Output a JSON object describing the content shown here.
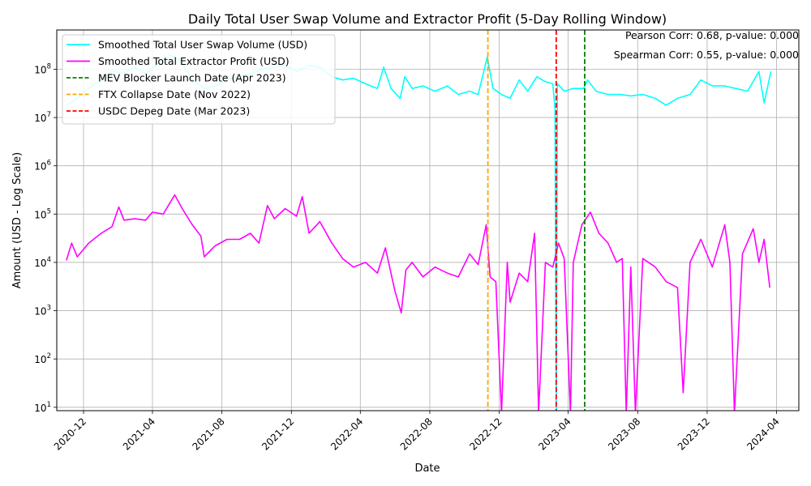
{
  "chart_data": {
    "type": "line",
    "title": "Daily Total User Swap Volume and Extractor Profit (5-Day Rolling Window)",
    "xlabel": "Date",
    "ylabel": "Amount (USD - Log Scale)",
    "yscale": "log",
    "xlim": [
      "2020-10-15",
      "2024-05-10"
    ],
    "ylim": [
      8.5,
      650000000
    ],
    "grid": true,
    "legend_position": "top-left",
    "x_ticks": [
      "2020-12",
      "2021-04",
      "2021-08",
      "2021-12",
      "2022-04",
      "2022-08",
      "2022-12",
      "2023-04",
      "2023-08",
      "2023-12",
      "2024-04"
    ],
    "x_tick_dates": [
      "2020-12-01",
      "2021-04-01",
      "2021-08-01",
      "2021-12-01",
      "2022-04-01",
      "2022-08-01",
      "2022-12-01",
      "2023-04-01",
      "2023-08-01",
      "2023-12-01",
      "2024-04-01"
    ],
    "y_ticks": [
      {
        "value": 10,
        "base": "10",
        "exp": "1"
      },
      {
        "value": 100,
        "base": "10",
        "exp": "2"
      },
      {
        "value": 1000,
        "base": "10",
        "exp": "3"
      },
      {
        "value": 10000,
        "base": "10",
        "exp": "4"
      },
      {
        "value": 100000,
        "base": "10",
        "exp": "5"
      },
      {
        "value": 1000000,
        "base": "10",
        "exp": "6"
      },
      {
        "value": 10000000,
        "base": "10",
        "exp": "7"
      },
      {
        "value": 100000000,
        "base": "10",
        "exp": "8"
      }
    ],
    "series": [
      {
        "name": "Smoothed Total User Swap Volume (USD)",
        "color": "#00ffff",
        "points": [
          [
            "2020-11-01",
            18000000
          ],
          [
            "2020-11-20",
            25000000
          ],
          [
            "2020-12-10",
            40000000
          ],
          [
            "2021-01-01",
            60000000
          ],
          [
            "2021-01-20",
            90000000
          ],
          [
            "2021-02-10",
            85000000
          ],
          [
            "2021-03-01",
            110000000
          ],
          [
            "2021-03-20",
            80000000
          ],
          [
            "2021-04-10",
            130000000
          ],
          [
            "2021-05-01",
            200000000
          ],
          [
            "2021-05-20",
            150000000
          ],
          [
            "2021-06-10",
            60000000
          ],
          [
            "2021-07-01",
            40000000
          ],
          [
            "2021-07-20",
            45000000
          ],
          [
            "2021-08-10",
            60000000
          ],
          [
            "2021-09-01",
            70000000
          ],
          [
            "2021-09-20",
            80000000
          ],
          [
            "2021-10-10",
            100000000
          ],
          [
            "2021-11-01",
            110000000
          ],
          [
            "2021-11-20",
            120000000
          ],
          [
            "2021-12-10",
            90000000
          ],
          [
            "2022-01-01",
            120000000
          ],
          [
            "2022-01-20",
            110000000
          ],
          [
            "2022-02-10",
            70000000
          ],
          [
            "2022-03-01",
            60000000
          ],
          [
            "2022-03-20",
            65000000
          ],
          [
            "2022-04-10",
            50000000
          ],
          [
            "2022-05-01",
            40000000
          ],
          [
            "2022-05-12",
            110000000
          ],
          [
            "2022-05-25",
            40000000
          ],
          [
            "2022-06-10",
            25000000
          ],
          [
            "2022-06-18",
            70000000
          ],
          [
            "2022-07-01",
            40000000
          ],
          [
            "2022-07-20",
            45000000
          ],
          [
            "2022-08-10",
            35000000
          ],
          [
            "2022-09-01",
            45000000
          ],
          [
            "2022-09-20",
            30000000
          ],
          [
            "2022-10-10",
            35000000
          ],
          [
            "2022-10-25",
            30000000
          ],
          [
            "2022-11-10",
            180000000
          ],
          [
            "2022-11-20",
            40000000
          ],
          [
            "2022-12-05",
            30000000
          ],
          [
            "2022-12-20",
            25000000
          ],
          [
            "2023-01-05",
            60000000
          ],
          [
            "2023-01-20",
            35000000
          ],
          [
            "2023-02-05",
            70000000
          ],
          [
            "2023-02-20",
            55000000
          ],
          [
            "2023-03-05",
            50000000
          ],
          [
            "2023-03-09",
            15000000
          ],
          [
            "2023-03-11",
            9
          ],
          [
            "2023-03-13",
            50000000
          ],
          [
            "2023-03-25",
            35000000
          ],
          [
            "2023-04-10",
            40000000
          ],
          [
            "2023-04-28",
            40000000
          ],
          [
            "2023-05-05",
            60000000
          ],
          [
            "2023-05-20",
            35000000
          ],
          [
            "2023-06-10",
            30000000
          ],
          [
            "2023-07-01",
            30000000
          ],
          [
            "2023-07-20",
            28000000
          ],
          [
            "2023-08-10",
            30000000
          ],
          [
            "2023-09-01",
            25000000
          ],
          [
            "2023-09-20",
            18000000
          ],
          [
            "2023-10-10",
            25000000
          ],
          [
            "2023-11-01",
            30000000
          ],
          [
            "2023-11-20",
            60000000
          ],
          [
            "2023-12-10",
            45000000
          ],
          [
            "2024-01-01",
            45000000
          ],
          [
            "2024-01-20",
            40000000
          ],
          [
            "2024-02-10",
            35000000
          ],
          [
            "2024-03-01",
            90000000
          ],
          [
            "2024-03-10",
            20000000
          ],
          [
            "2024-03-22",
            90000000
          ]
        ]
      },
      {
        "name": "Smoothed Total Extractor Profit (USD)",
        "color": "#ff00ff",
        "points": [
          [
            "2020-11-01",
            11000
          ],
          [
            "2020-11-10",
            25000
          ],
          [
            "2020-11-20",
            13000
          ],
          [
            "2020-12-10",
            25000
          ],
          [
            "2021-01-01",
            40000
          ],
          [
            "2021-01-20",
            55000
          ],
          [
            "2021-02-01",
            140000
          ],
          [
            "2021-02-10",
            75000
          ],
          [
            "2021-03-01",
            80000
          ],
          [
            "2021-03-20",
            75000
          ],
          [
            "2021-04-01",
            110000
          ],
          [
            "2021-04-20",
            100000
          ],
          [
            "2021-05-10",
            250000
          ],
          [
            "2021-05-25",
            120000
          ],
          [
            "2021-06-10",
            60000
          ],
          [
            "2021-06-25",
            35000
          ],
          [
            "2021-07-01",
            13000
          ],
          [
            "2021-07-20",
            22000
          ],
          [
            "2021-08-10",
            30000
          ],
          [
            "2021-09-01",
            30000
          ],
          [
            "2021-09-20",
            40000
          ],
          [
            "2021-10-05",
            25000
          ],
          [
            "2021-10-20",
            150000
          ],
          [
            "2021-11-01",
            80000
          ],
          [
            "2021-11-20",
            130000
          ],
          [
            "2021-12-10",
            90000
          ],
          [
            "2021-12-20",
            230000
          ],
          [
            "2022-01-01",
            40000
          ],
          [
            "2022-01-20",
            70000
          ],
          [
            "2022-02-10",
            25000
          ],
          [
            "2022-03-01",
            12000
          ],
          [
            "2022-03-20",
            8000
          ],
          [
            "2022-04-10",
            10000
          ],
          [
            "2022-05-01",
            6000
          ],
          [
            "2022-05-15",
            20000
          ],
          [
            "2022-06-01",
            2500
          ],
          [
            "2022-06-12",
            900
          ],
          [
            "2022-06-20",
            7000
          ],
          [
            "2022-07-01",
            10000
          ],
          [
            "2022-07-20",
            5000
          ],
          [
            "2022-08-10",
            8000
          ],
          [
            "2022-09-01",
            6000
          ],
          [
            "2022-09-20",
            5000
          ],
          [
            "2022-10-10",
            15000
          ],
          [
            "2022-10-25",
            9000
          ],
          [
            "2022-11-08",
            60000
          ],
          [
            "2022-11-15",
            5000
          ],
          [
            "2022-11-25",
            4000
          ],
          [
            "2022-12-05",
            6
          ],
          [
            "2022-12-15",
            10000
          ],
          [
            "2022-12-20",
            1500
          ],
          [
            "2023-01-05",
            6000
          ],
          [
            "2023-01-20",
            4000
          ],
          [
            "2023-02-01",
            40000
          ],
          [
            "2023-02-08",
            6
          ],
          [
            "2023-02-20",
            10000
          ],
          [
            "2023-03-05",
            8000
          ],
          [
            "2023-03-15",
            25000
          ],
          [
            "2023-03-25",
            12000
          ],
          [
            "2023-04-05",
            6
          ],
          [
            "2023-04-10",
            10000
          ],
          [
            "2023-04-25",
            60000
          ],
          [
            "2023-05-10",
            110000
          ],
          [
            "2023-05-25",
            40000
          ],
          [
            "2023-06-10",
            25000
          ],
          [
            "2023-06-25",
            10000
          ],
          [
            "2023-07-05",
            12000
          ],
          [
            "2023-07-12",
            6
          ],
          [
            "2023-07-20",
            8000
          ],
          [
            "2023-07-28",
            6
          ],
          [
            "2023-08-10",
            12000
          ],
          [
            "2023-09-01",
            8000
          ],
          [
            "2023-09-20",
            4000
          ],
          [
            "2023-10-10",
            3000
          ],
          [
            "2023-10-20",
            20
          ],
          [
            "2023-11-01",
            10000
          ],
          [
            "2023-11-20",
            30000
          ],
          [
            "2023-12-10",
            8000
          ],
          [
            "2024-01-01",
            60000
          ],
          [
            "2024-01-10",
            10000
          ],
          [
            "2024-01-18",
            6
          ],
          [
            "2024-02-01",
            15000
          ],
          [
            "2024-02-20",
            50000
          ],
          [
            "2024-03-01",
            10000
          ],
          [
            "2024-03-10",
            30000
          ],
          [
            "2024-03-20",
            3000
          ]
        ]
      }
    ],
    "vertical_lines": [
      {
        "name": "MEV Blocker Launch Date (Apr 2023)",
        "date": "2023-04-30",
        "color": "#008000"
      },
      {
        "name": "FTX Collapse Date (Nov 2022)",
        "date": "2022-11-11",
        "color": "#ffa500"
      },
      {
        "name": "USDC Depeg Date (Mar 2023)",
        "date": "2023-03-11",
        "color": "#ff0000"
      }
    ],
    "annotations": [
      "Pearson Corr: 0.68, p-value: 0.000",
      "Spearman Corr: 0.55, p-value: 0.000"
    ]
  }
}
